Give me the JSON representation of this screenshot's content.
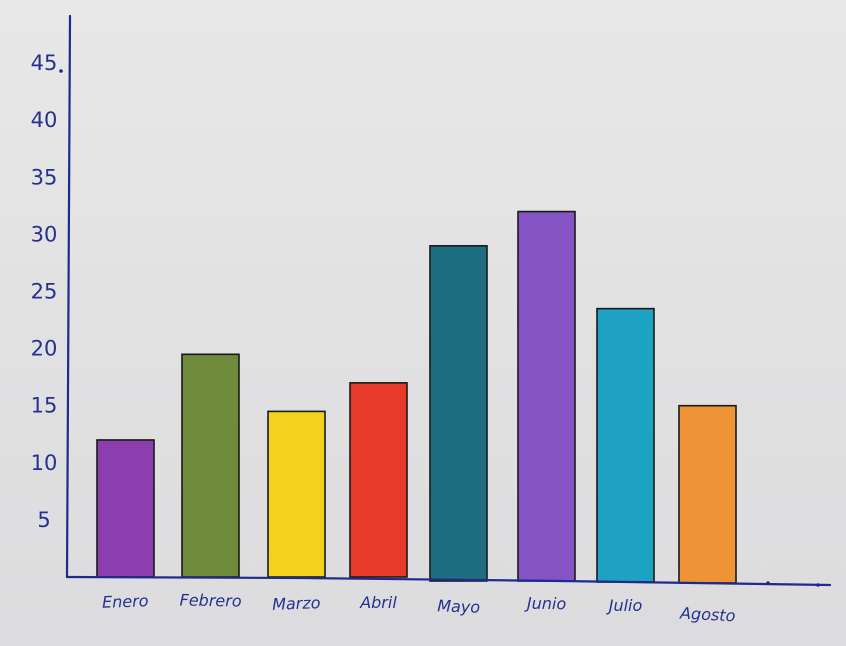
{
  "chart_data": {
    "type": "bar",
    "title": "",
    "xlabel": "",
    "ylabel": "",
    "categories": [
      "Enero",
      "Febrero",
      "Marzo",
      "Abril",
      "Mayo",
      "Junio",
      "Julio",
      "Agosto"
    ],
    "values": [
      12,
      19.5,
      14.5,
      17,
      29,
      32,
      23.5,
      15
    ],
    "ylim": [
      0,
      45
    ],
    "y_ticks": [
      "5",
      "10",
      "15",
      "20",
      "25",
      "30",
      "35",
      "40",
      "45"
    ],
    "bar_colors": [
      "#8b3fae",
      "#6e8a3a",
      "#f2d21c",
      "#e83a2a",
      "#1d6e80",
      "#8453c4",
      "#1ea2c4",
      "#ef9436"
    ],
    "grid": false,
    "legend": "none"
  }
}
